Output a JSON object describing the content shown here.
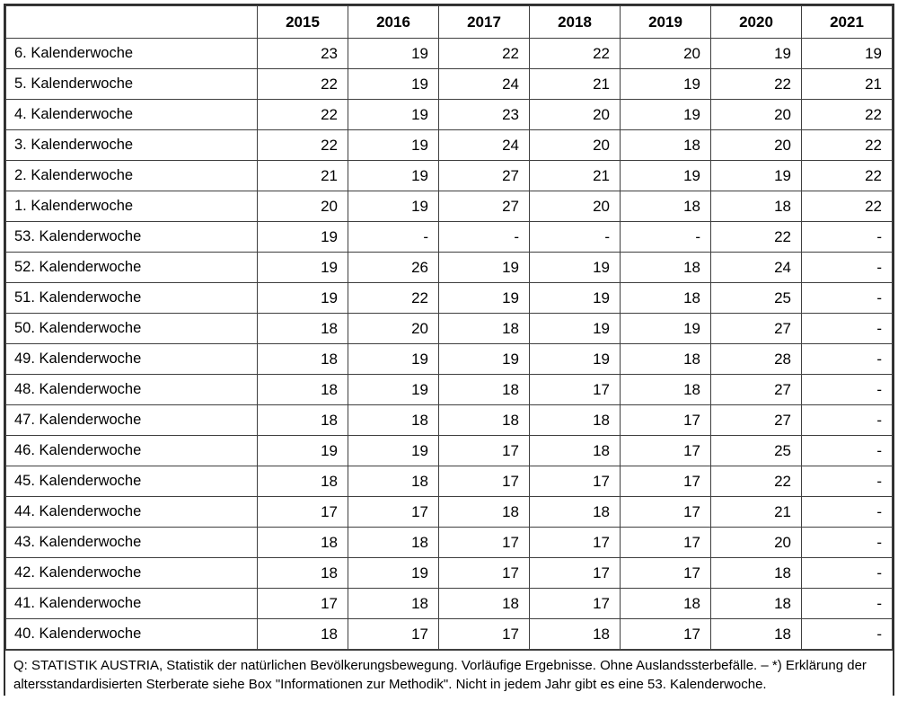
{
  "colors": {
    "background": "#ffffff",
    "border": "#3f3f3f",
    "outer_border": "#2e2e2e",
    "text": "#000000"
  },
  "chart_data": {
    "type": "table",
    "description": "Weekly age-standardized mortality rates by calendar week and year",
    "columns": [
      "2015",
      "2016",
      "2017",
      "2018",
      "2019",
      "2020",
      "2021"
    ],
    "rows": [
      {
        "label": "6. Kalenderwoche",
        "values": [
          "23",
          "19",
          "22",
          "22",
          "20",
          "19",
          "19"
        ]
      },
      {
        "label": "5. Kalenderwoche",
        "values": [
          "22",
          "19",
          "24",
          "21",
          "19",
          "22",
          "21"
        ]
      },
      {
        "label": "4. Kalenderwoche",
        "values": [
          "22",
          "19",
          "23",
          "20",
          "19",
          "20",
          "22"
        ]
      },
      {
        "label": "3. Kalenderwoche",
        "values": [
          "22",
          "19",
          "24",
          "20",
          "18",
          "20",
          "22"
        ]
      },
      {
        "label": "2. Kalenderwoche",
        "values": [
          "21",
          "19",
          "27",
          "21",
          "19",
          "19",
          "22"
        ]
      },
      {
        "label": "1. Kalenderwoche",
        "values": [
          "20",
          "19",
          "27",
          "20",
          "18",
          "18",
          "22"
        ]
      },
      {
        "label": "53. Kalenderwoche",
        "values": [
          "19",
          "-",
          "-",
          "-",
          "-",
          "22",
          "-"
        ]
      },
      {
        "label": "52. Kalenderwoche",
        "values": [
          "19",
          "26",
          "19",
          "19",
          "18",
          "24",
          "-"
        ]
      },
      {
        "label": "51. Kalenderwoche",
        "values": [
          "19",
          "22",
          "19",
          "19",
          "18",
          "25",
          "-"
        ]
      },
      {
        "label": "50. Kalenderwoche",
        "values": [
          "18",
          "20",
          "18",
          "19",
          "19",
          "27",
          "-"
        ]
      },
      {
        "label": "49. Kalenderwoche",
        "values": [
          "18",
          "19",
          "19",
          "19",
          "18",
          "28",
          "-"
        ]
      },
      {
        "label": "48. Kalenderwoche",
        "values": [
          "18",
          "19",
          "18",
          "17",
          "18",
          "27",
          "-"
        ]
      },
      {
        "label": "47. Kalenderwoche",
        "values": [
          "18",
          "18",
          "18",
          "18",
          "17",
          "27",
          "-"
        ]
      },
      {
        "label": "46. Kalenderwoche",
        "values": [
          "19",
          "19",
          "17",
          "18",
          "17",
          "25",
          "-"
        ]
      },
      {
        "label": "45. Kalenderwoche",
        "values": [
          "18",
          "18",
          "17",
          "17",
          "17",
          "22",
          "-"
        ]
      },
      {
        "label": "44. Kalenderwoche",
        "values": [
          "17",
          "17",
          "18",
          "18",
          "17",
          "21",
          "-"
        ]
      },
      {
        "label": "43. Kalenderwoche",
        "values": [
          "18",
          "18",
          "17",
          "17",
          "17",
          "20",
          "-"
        ]
      },
      {
        "label": "42. Kalenderwoche",
        "values": [
          "18",
          "19",
          "17",
          "17",
          "17",
          "18",
          "-"
        ]
      },
      {
        "label": "41. Kalenderwoche",
        "values": [
          "17",
          "18",
          "18",
          "17",
          "18",
          "18",
          "-"
        ]
      },
      {
        "label": "40. Kalenderwoche",
        "values": [
          "18",
          "17",
          "17",
          "18",
          "17",
          "18",
          "-"
        ]
      }
    ],
    "footnote": "Q: STATISTIK AUSTRIA, Statistik der natürlichen Bevölkerungsbewegung. Vorläufige Ergebnisse. Ohne Auslandssterbefälle. – *) Erklärung der altersstandardisierten Sterberate siehe Box \"Informationen zur Methodik\".  Nicht in jedem Jahr gibt es eine 53. Kalenderwoche."
  }
}
